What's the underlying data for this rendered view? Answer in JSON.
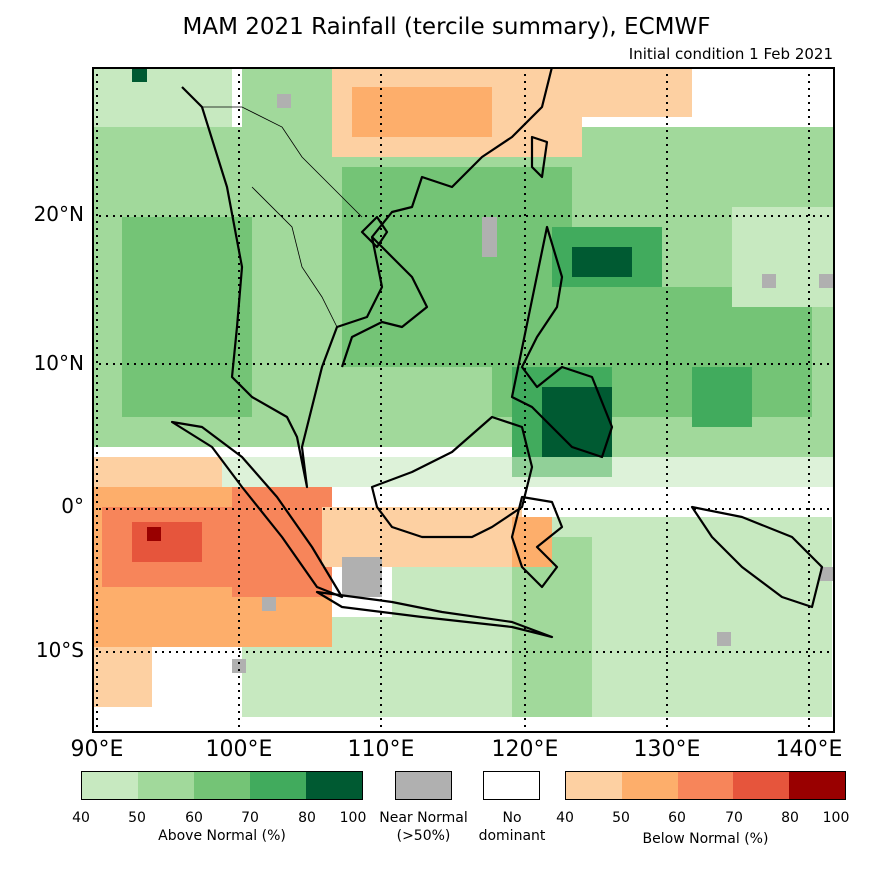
{
  "title": "MAM 2021 Rainfall (tercile summary), ECMWF",
  "subtitle": "Initial condition 1 Feb 2021",
  "lat_labels": [
    "20°N",
    "10°N",
    "0°",
    "10°S"
  ],
  "lon_labels": [
    "90°E",
    "100°E",
    "110°E",
    "120°E",
    "130°E",
    "140°E"
  ],
  "colors": {
    "above": [
      "#c7e9c0",
      "#a1d99b",
      "#74c476",
      "#41ab5d",
      "#005a32"
    ],
    "below": [
      "#fdd0a2",
      "#fdae6b",
      "#f7855a",
      "#e6553c",
      "#990000"
    ],
    "near_normal": "#b0b0b0",
    "no_dominant": "#ffffff"
  },
  "legend": {
    "above_label": "Above Normal (%)",
    "below_label": "Below Normal (%)",
    "near_normal_label": "Near Normal",
    "near_normal_sub": "(>50%)",
    "no_dominant_label": "No",
    "no_dominant_sub": "dominant",
    "ticks": [
      "40",
      "50",
      "60",
      "70",
      "80",
      "100"
    ]
  }
}
